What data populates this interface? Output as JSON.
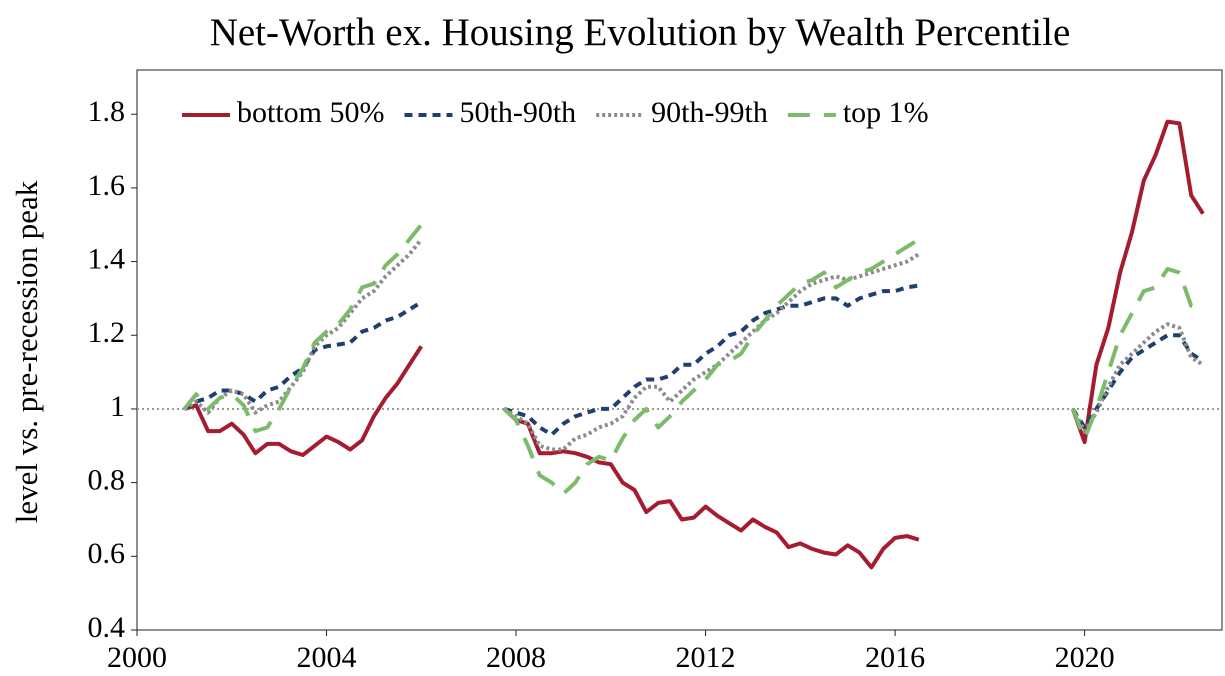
{
  "chart_data": {
    "type": "line",
    "title": "Net-Worth ex. Housing Evolution by Wealth Percentile",
    "y_label": "level vs. pre-recession peak",
    "xlim": [
      2000,
      2022.9
    ],
    "ylim": [
      0.4,
      1.92
    ],
    "xticks": [
      2000,
      2004,
      2008,
      2012,
      2016,
      2020
    ],
    "yticks": [
      0.4,
      0.6,
      0.8,
      1,
      1.2,
      1.4,
      1.6,
      1.8
    ],
    "hline": 1,
    "legend": "upper left",
    "x": [
      2001,
      2001.25,
      2001.5,
      2001.75,
      2002,
      2002.25,
      2002.5,
      2002.75,
      2003,
      2003.25,
      2003.5,
      2003.75,
      2004,
      2004.25,
      2004.5,
      2004.75,
      2005,
      2005.25,
      2005.5,
      2005.75,
      2006,
      2007,
      2007.75,
      2008,
      2008.25,
      2008.5,
      2008.75,
      2009,
      2009.25,
      2009.5,
      2009.75,
      2010,
      2010.25,
      2010.5,
      2010.75,
      2011,
      2011.25,
      2011.5,
      2011.75,
      2012,
      2012.25,
      2012.5,
      2012.75,
      2013,
      2013.25,
      2013.5,
      2013.75,
      2014,
      2014.25,
      2014.5,
      2014.75,
      2015,
      2015.25,
      2015.5,
      2015.75,
      2016,
      2016.25,
      2016.5,
      2018,
      2019.75,
      2020,
      2020.25,
      2020.5,
      2020.75,
      2021,
      2021.25,
      2021.5,
      2021.75,
      2022,
      2022.25,
      2022.5
    ],
    "series": [
      {
        "name": "bottom 50%",
        "color": "#a51c30",
        "dash": "solid",
        "values": [
          1,
          1.01,
          0.94,
          0.94,
          0.96,
          0.93,
          0.88,
          0.905,
          0.905,
          0.885,
          0.875,
          0.9,
          0.925,
          0.91,
          0.89,
          0.915,
          0.98,
          1.03,
          1.07,
          1.12,
          1.17,
          null,
          1,
          0.97,
          0.96,
          0.88,
          0.88,
          0.885,
          0.88,
          0.87,
          0.855,
          0.85,
          0.8,
          0.78,
          0.72,
          0.745,
          0.75,
          0.7,
          0.705,
          0.735,
          0.71,
          0.69,
          0.67,
          0.7,
          0.68,
          0.665,
          0.625,
          0.635,
          0.62,
          0.61,
          0.605,
          0.63,
          0.61,
          0.57,
          0.62,
          0.65,
          0.655,
          0.645,
          null,
          1,
          0.91,
          1.12,
          1.22,
          1.37,
          1.48,
          1.62,
          1.69,
          1.78,
          1.775,
          1.58,
          1.53
        ]
      },
      {
        "name": "50th-90th",
        "color": "#1f3f6e",
        "dash": "dashed",
        "values": [
          1,
          1.02,
          1.03,
          1.05,
          1.05,
          1.04,
          1.02,
          1.05,
          1.06,
          1.09,
          1.11,
          1.16,
          1.17,
          1.175,
          1.18,
          1.21,
          1.22,
          1.24,
          1.25,
          1.27,
          1.29,
          null,
          1,
          0.99,
          0.98,
          0.95,
          0.93,
          0.96,
          0.98,
          0.99,
          1.0,
          1.0,
          1.03,
          1.06,
          1.08,
          1.08,
          1.09,
          1.12,
          1.12,
          1.15,
          1.17,
          1.2,
          1.21,
          1.24,
          1.26,
          1.27,
          1.28,
          1.28,
          1.29,
          1.3,
          1.3,
          1.28,
          1.3,
          1.31,
          1.32,
          1.32,
          1.33,
          1.335,
          null,
          1,
          0.95,
          1.0,
          1.05,
          1.1,
          1.14,
          1.16,
          1.18,
          1.2,
          1.2,
          1.15,
          1.13
        ]
      },
      {
        "name": "90th-99th",
        "color": "#8c8c8c",
        "dash": "dotted",
        "values": [
          1,
          1.02,
          0.99,
          1.03,
          1.05,
          1.04,
          0.99,
          1.01,
          1.02,
          1.06,
          1.1,
          1.17,
          1.2,
          1.22,
          1.26,
          1.3,
          1.32,
          1.36,
          1.39,
          1.42,
          1.46,
          null,
          1,
          0.98,
          0.96,
          0.9,
          0.89,
          0.89,
          0.92,
          0.93,
          0.95,
          0.96,
          0.98,
          1.03,
          1.06,
          1.06,
          1.02,
          1.05,
          1.08,
          1.1,
          1.12,
          1.15,
          1.18,
          1.21,
          1.24,
          1.26,
          1.29,
          1.32,
          1.34,
          1.35,
          1.36,
          1.35,
          1.36,
          1.37,
          1.38,
          1.39,
          1.4,
          1.42,
          null,
          1,
          0.94,
          0.99,
          1.06,
          1.12,
          1.15,
          1.18,
          1.21,
          1.23,
          1.22,
          1.14,
          1.12
        ]
      },
      {
        "name": "top 1%",
        "color": "#7dbb6c",
        "dash": "longdash",
        "values": [
          1,
          1.04,
          1.0,
          1.03,
          1.04,
          1.01,
          0.94,
          0.95,
          1.0,
          1.06,
          1.11,
          1.18,
          1.21,
          1.23,
          1.27,
          1.33,
          1.34,
          1.39,
          1.42,
          1.46,
          1.5,
          null,
          1,
          0.97,
          0.9,
          0.82,
          0.8,
          0.77,
          0.8,
          0.85,
          0.87,
          0.86,
          0.92,
          0.97,
          1.0,
          0.95,
          0.98,
          1.02,
          1.05,
          1.08,
          1.12,
          1.13,
          1.15,
          1.2,
          1.24,
          1.28,
          1.31,
          1.34,
          1.35,
          1.37,
          1.33,
          1.35,
          1.37,
          1.38,
          1.4,
          1.42,
          1.44,
          1.46,
          null,
          1,
          0.92,
          1.0,
          1.1,
          1.2,
          1.26,
          1.32,
          1.33,
          1.38,
          1.37,
          1.28,
          1.28
        ]
      }
    ]
  }
}
